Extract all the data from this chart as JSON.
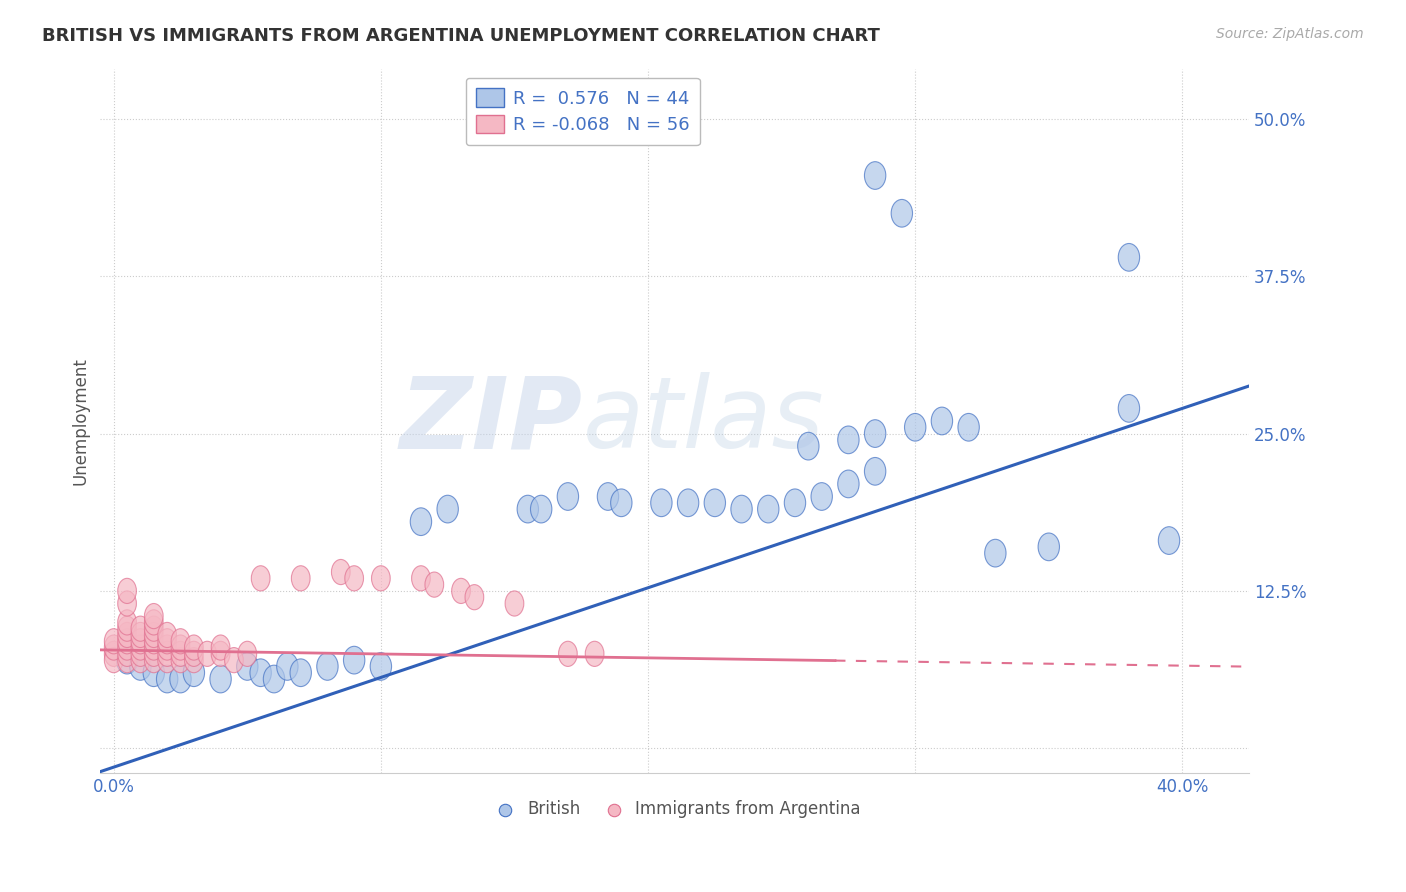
{
  "title": "BRITISH VS IMMIGRANTS FROM ARGENTINA UNEMPLOYMENT CORRELATION CHART",
  "source": "Source: ZipAtlas.com",
  "ylabel": "Unemployment",
  "x_min": -0.005,
  "x_max": 0.425,
  "y_min": -0.02,
  "y_max": 0.54,
  "y_ticks": [
    0.0,
    0.125,
    0.25,
    0.375,
    0.5
  ],
  "y_tick_labels": [
    "",
    "12.5%",
    "25.0%",
    "37.5%",
    "50.0%"
  ],
  "x_ticks": [
    0.0,
    0.1,
    0.2,
    0.3,
    0.4
  ],
  "x_tick_labels": [
    "0.0%",
    "",
    "",
    "",
    "40.0%"
  ],
  "british_R": 0.576,
  "british_N": 44,
  "argentina_R": -0.068,
  "argentina_N": 56,
  "british_color": "#aec6e8",
  "british_edge_color": "#4472c4",
  "argentina_color": "#f5b8c4",
  "argentina_edge_color": "#e07090",
  "british_line_color": "#3060b8",
  "argentina_line_color": "#e07090",
  "british_scatter": [
    [
      0.005,
      0.07
    ],
    [
      0.01,
      0.065
    ],
    [
      0.015,
      0.06
    ],
    [
      0.02,
      0.055
    ],
    [
      0.025,
      0.055
    ],
    [
      0.03,
      0.06
    ],
    [
      0.04,
      0.055
    ],
    [
      0.05,
      0.065
    ],
    [
      0.055,
      0.06
    ],
    [
      0.06,
      0.055
    ],
    [
      0.065,
      0.065
    ],
    [
      0.07,
      0.06
    ],
    [
      0.08,
      0.065
    ],
    [
      0.09,
      0.07
    ],
    [
      0.1,
      0.065
    ],
    [
      0.115,
      0.18
    ],
    [
      0.125,
      0.19
    ],
    [
      0.155,
      0.19
    ],
    [
      0.16,
      0.19
    ],
    [
      0.17,
      0.2
    ],
    [
      0.185,
      0.2
    ],
    [
      0.19,
      0.195
    ],
    [
      0.205,
      0.195
    ],
    [
      0.215,
      0.195
    ],
    [
      0.225,
      0.195
    ],
    [
      0.235,
      0.19
    ],
    [
      0.245,
      0.19
    ],
    [
      0.255,
      0.195
    ],
    [
      0.265,
      0.2
    ],
    [
      0.275,
      0.21
    ],
    [
      0.285,
      0.22
    ],
    [
      0.26,
      0.24
    ],
    [
      0.275,
      0.245
    ],
    [
      0.285,
      0.25
    ],
    [
      0.3,
      0.255
    ],
    [
      0.31,
      0.26
    ],
    [
      0.32,
      0.255
    ],
    [
      0.33,
      0.155
    ],
    [
      0.35,
      0.16
    ],
    [
      0.285,
      0.455
    ],
    [
      0.295,
      0.425
    ],
    [
      0.38,
      0.39
    ],
    [
      0.38,
      0.27
    ],
    [
      0.395,
      0.165
    ]
  ],
  "argentina_scatter": [
    [
      0.0,
      0.075
    ],
    [
      0.0,
      0.07
    ],
    [
      0.0,
      0.08
    ],
    [
      0.0,
      0.085
    ],
    [
      0.005,
      0.07
    ],
    [
      0.005,
      0.075
    ],
    [
      0.005,
      0.08
    ],
    [
      0.005,
      0.085
    ],
    [
      0.005,
      0.09
    ],
    [
      0.005,
      0.095
    ],
    [
      0.005,
      0.1
    ],
    [
      0.005,
      0.115
    ],
    [
      0.005,
      0.125
    ],
    [
      0.01,
      0.07
    ],
    [
      0.01,
      0.075
    ],
    [
      0.01,
      0.08
    ],
    [
      0.01,
      0.085
    ],
    [
      0.01,
      0.09
    ],
    [
      0.01,
      0.095
    ],
    [
      0.015,
      0.07
    ],
    [
      0.015,
      0.075
    ],
    [
      0.015,
      0.08
    ],
    [
      0.015,
      0.085
    ],
    [
      0.015,
      0.09
    ],
    [
      0.015,
      0.095
    ],
    [
      0.015,
      0.1
    ],
    [
      0.015,
      0.105
    ],
    [
      0.02,
      0.07
    ],
    [
      0.02,
      0.075
    ],
    [
      0.02,
      0.08
    ],
    [
      0.02,
      0.085
    ],
    [
      0.02,
      0.09
    ],
    [
      0.025,
      0.07
    ],
    [
      0.025,
      0.075
    ],
    [
      0.025,
      0.08
    ],
    [
      0.025,
      0.085
    ],
    [
      0.03,
      0.07
    ],
    [
      0.03,
      0.075
    ],
    [
      0.03,
      0.08
    ],
    [
      0.035,
      0.075
    ],
    [
      0.04,
      0.075
    ],
    [
      0.04,
      0.08
    ],
    [
      0.045,
      0.07
    ],
    [
      0.05,
      0.075
    ],
    [
      0.055,
      0.135
    ],
    [
      0.07,
      0.135
    ],
    [
      0.085,
      0.14
    ],
    [
      0.09,
      0.135
    ],
    [
      0.1,
      0.135
    ],
    [
      0.115,
      0.135
    ],
    [
      0.12,
      0.13
    ],
    [
      0.13,
      0.125
    ],
    [
      0.135,
      0.12
    ],
    [
      0.15,
      0.115
    ],
    [
      0.17,
      0.075
    ],
    [
      0.18,
      0.075
    ]
  ],
  "watermark_zip": "ZIP",
  "watermark_atlas": "atlas",
  "legend_text_color": "#4472c4",
  "title_color": "#333333",
  "axis_label_color": "#555555",
  "grid_color": "#cccccc",
  "tick_label_color": "#4472c4"
}
